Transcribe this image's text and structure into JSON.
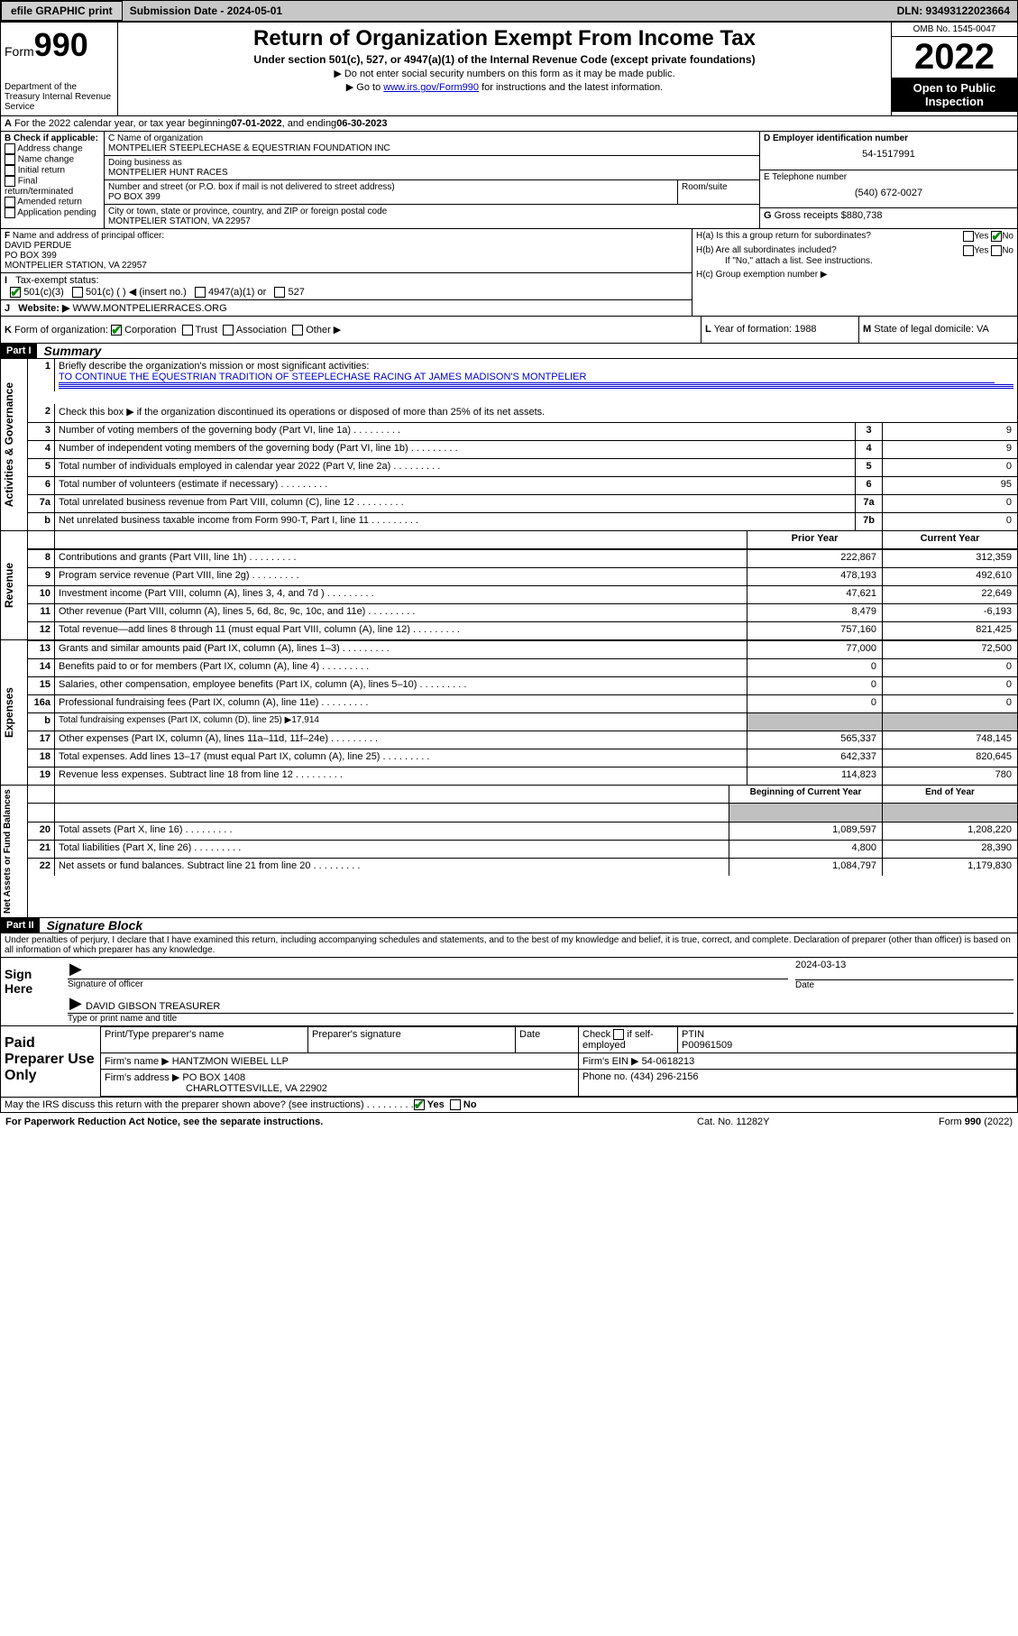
{
  "topbar": {
    "efile": "efile GRAPHIC print",
    "sub_label": "Submission Date - 2024-05-01",
    "dln": "DLN: 93493122023664"
  },
  "header": {
    "form": "Form",
    "form_num": "990",
    "dept": "Department of the Treasury Internal Revenue Service",
    "title": "Return of Organization Exempt From Income Tax",
    "sub": "Under section 501(c), 527, or 4947(a)(1) of the Internal Revenue Code (except private foundations)",
    "note1": "Do not enter social security numbers on this form as it may be made public.",
    "note2": "Go to ",
    "link": "www.irs.gov/Form990",
    "note2b": " for instructions and the latest information.",
    "omb": "OMB No. 1545-0047",
    "year": "2022",
    "open": "Open to Public Inspection"
  },
  "line_a": {
    "label": "A",
    "text": "For the 2022 calendar year, or tax year beginning ",
    "b": "07-01-2022",
    "mid": " , and ending ",
    "e": "06-30-2023"
  },
  "b": {
    "label": "B Check if applicable:",
    "addr": "Address change",
    "name": "Name change",
    "init": "Initial return",
    "final": "Final return/terminated",
    "amend": "Amended return",
    "app": "Application pending"
  },
  "c": {
    "label": "C Name of organization",
    "org": "MONTPELIER STEEPLECHASE & EQUESTRIAN FOUNDATION INC",
    "dba_label": "Doing business as",
    "dba": "MONTPELIER HUNT RACES",
    "street_label": "Number and street (or P.O. box if mail is not delivered to street address)",
    "room_label": "Room/suite",
    "street": "PO BOX 399",
    "city_label": "City or town, state or province, country, and ZIP or foreign postal code",
    "city": "MONTPELIER STATION, VA  22957"
  },
  "d": {
    "label": "D Employer identification number",
    "val": "54-1517991"
  },
  "e": {
    "label": "E Telephone number",
    "val": "(540) 672-0027"
  },
  "g": {
    "label": "G",
    "text": "Gross receipts $",
    "val": "880,738"
  },
  "f": {
    "label": "F",
    "text": "Name and address of principal officer:",
    "name": "DAVID PERDUE",
    "addr1": "PO BOX 399",
    "addr2": "MONTPELIER STATION, VA  22957"
  },
  "h": {
    "a": "H(a)  Is this a group return for subordinates?",
    "b": "H(b)  Are all subordinates included?",
    "bnote": "If \"No,\" attach a list. See instructions.",
    "c": "H(c)  Group exemption number ▶",
    "yes": "Yes",
    "no": "No"
  },
  "i": {
    "label": "I",
    "text": "Tax-exempt status:",
    "o1": "501(c)(3)",
    "o2": "501(c) (  ) ◀ (insert no.)",
    "o3": "4947(a)(1) or",
    "o4": "527"
  },
  "j": {
    "label": "J",
    "text": "Website: ▶",
    "val": "WWW.MONTPELIERRACES.ORG"
  },
  "k": {
    "label": "K",
    "text": "Form of organization:",
    "corp": "Corporation",
    "trust": "Trust",
    "assoc": "Association",
    "other": "Other ▶"
  },
  "l": {
    "label": "L",
    "text": "Year of formation:",
    "val": "1988"
  },
  "m": {
    "label": "M",
    "text": "State of legal domicile:",
    "val": "VA"
  },
  "part1": {
    "label": "Part I",
    "title": "Summary"
  },
  "s1": {
    "num": "1",
    "text": "Briefly describe the organization's mission or most significant activities:",
    "val": "TO CONTINUE THE EQUESTRIAN TRADITION OF STEEPLECHASE RACING AT JAMES MADISON'S MONTPELIER"
  },
  "s2": {
    "num": "2",
    "text": "Check this box ▶          if the organization discontinued its operations or disposed of more than 25% of its net assets."
  },
  "vlabels": {
    "ag": "Activities & Governance",
    "rev": "Revenue",
    "exp": "Expenses",
    "na": "Net Assets or Fund Balances"
  },
  "rows_ag": [
    {
      "n": "3",
      "d": "Number of voting members of the governing body (Part VI, line 1a)",
      "rn": "3",
      "v": "9"
    },
    {
      "n": "4",
      "d": "Number of independent voting members of the governing body (Part VI, line 1b)",
      "rn": "4",
      "v": "9"
    },
    {
      "n": "5",
      "d": "Total number of individuals employed in calendar year 2022 (Part V, line 2a)",
      "rn": "5",
      "v": "0"
    },
    {
      "n": "6",
      "d": "Total number of volunteers (estimate if necessary)",
      "rn": "6",
      "v": "95"
    },
    {
      "n": "7a",
      "d": "Total unrelated business revenue from Part VIII, column (C), line 12",
      "rn": "7a",
      "v": "0"
    },
    {
      "n": "b",
      "d": "Net unrelated business taxable income from Form 990-T, Part I, line 11",
      "rn": "7b",
      "v": "0"
    }
  ],
  "col_headers": {
    "prior": "Prior Year",
    "current": "Current Year"
  },
  "rows_rev": [
    {
      "n": "8",
      "d": "Contributions and grants (Part VIII, line 1h)",
      "p": "222,867",
      "c": "312,359"
    },
    {
      "n": "9",
      "d": "Program service revenue (Part VIII, line 2g)",
      "p": "478,193",
      "c": "492,610"
    },
    {
      "n": "10",
      "d": "Investment income (Part VIII, column (A), lines 3, 4, and 7d )",
      "p": "47,621",
      "c": "22,649"
    },
    {
      "n": "11",
      "d": "Other revenue (Part VIII, column (A), lines 5, 6d, 8c, 9c, 10c, and 11e)",
      "p": "8,479",
      "c": "-6,193"
    },
    {
      "n": "12",
      "d": "Total revenue—add lines 8 through 11 (must equal Part VIII, column (A), line 12)",
      "p": "757,160",
      "c": "821,425"
    }
  ],
  "rows_exp": [
    {
      "n": "13",
      "d": "Grants and similar amounts paid (Part IX, column (A), lines 1–3)",
      "p": "77,000",
      "c": "72,500"
    },
    {
      "n": "14",
      "d": "Benefits paid to or for members (Part IX, column (A), line 4)",
      "p": "0",
      "c": "0"
    },
    {
      "n": "15",
      "d": "Salaries, other compensation, employee benefits (Part IX, column (A), lines 5–10)",
      "p": "0",
      "c": "0"
    },
    {
      "n": "16a",
      "d": "Professional fundraising fees (Part IX, column (A), line 11e)",
      "p": "0",
      "c": "0"
    }
  ],
  "row_16b": {
    "n": "b",
    "d": "Total fundraising expenses (Part IX, column (D), line 25) ▶17,914"
  },
  "rows_exp2": [
    {
      "n": "17",
      "d": "Other expenses (Part IX, column (A), lines 11a–11d, 11f–24e)",
      "p": "565,337",
      "c": "748,145"
    },
    {
      "n": "18",
      "d": "Total expenses. Add lines 13–17 (must equal Part IX, column (A), line 25)",
      "p": "642,337",
      "c": "820,645"
    },
    {
      "n": "19",
      "d": "Revenue less expenses. Subtract line 18 from line 12",
      "p": "114,823",
      "c": "780"
    }
  ],
  "col_headers2": {
    "prior": "Beginning of Current Year",
    "current": "End of Year"
  },
  "rows_na": [
    {
      "n": "20",
      "d": "Total assets (Part X, line 16)",
      "p": "1,089,597",
      "c": "1,208,220"
    },
    {
      "n": "21",
      "d": "Total liabilities (Part X, line 26)",
      "p": "4,800",
      "c": "28,390"
    },
    {
      "n": "22",
      "d": "Net assets or fund balances. Subtract line 21 from line 20",
      "p": "1,084,797",
      "c": "1,179,830"
    }
  ],
  "part2": {
    "label": "Part II",
    "title": "Signature Block"
  },
  "part2_text": "Under penalties of perjury, I declare that I have examined this return, including accompanying schedules and statements, and to the best of my knowledge and belief, it is true, correct, and complete. Declaration of preparer (other than officer) is based on all information of which preparer has any knowledge.",
  "sign": {
    "here": "Sign Here",
    "sig_officer": "Signature of officer",
    "date": "Date",
    "date_val": "2024-03-13",
    "name_title": "DAVID GIBSON  TREASURER",
    "type_name": "Type or print name and title"
  },
  "paid": {
    "title": "Paid Preparer Use Only",
    "h1": "Print/Type preparer's name",
    "h2": "Preparer's signature",
    "h3": "Date",
    "h4a": "Check",
    "h4b": "if self-employed",
    "h5": "PTIN",
    "ptin": "P00961509",
    "firm_name_l": "Firm's name   ▶",
    "firm_name": "HANTZMON WIEBEL LLP",
    "firm_ein_l": "Firm's EIN ▶",
    "firm_ein": "54-0618213",
    "firm_addr_l": "Firm's address ▶",
    "firm_addr": "PO BOX 1408",
    "firm_city": "CHARLOTTESVILLE, VA  22902",
    "phone_l": "Phone no.",
    "phone": "(434) 296-2156"
  },
  "discuss": {
    "text": "May the IRS discuss this return with the preparer shown above? (see instructions)",
    "yes": "Yes",
    "no": "No"
  },
  "footer": {
    "left": "For Paperwork Reduction Act Notice, see the separate instructions.",
    "mid": "Cat. No. 11282Y",
    "right": "Form 990 (2022)"
  }
}
